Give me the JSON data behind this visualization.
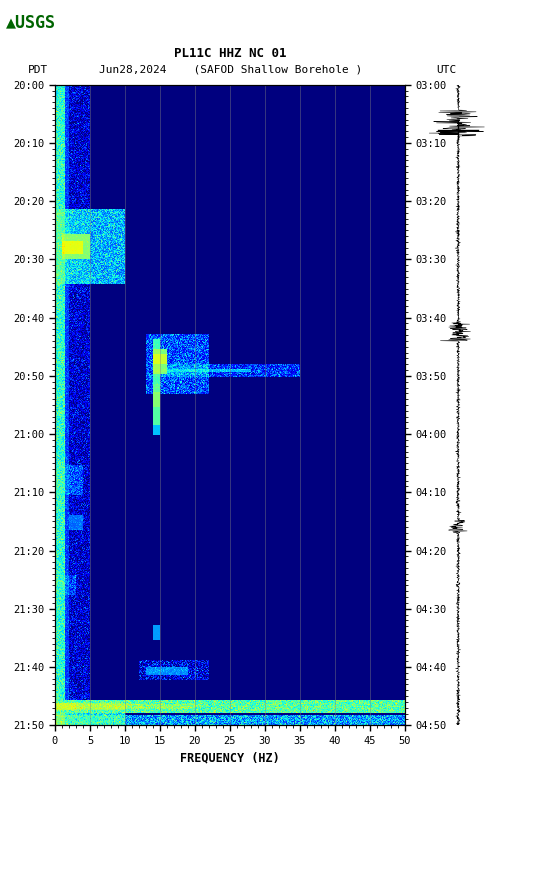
{
  "title_line1": "PL11C HHZ NC 01",
  "title_line2": "Jun28,2024    (SAFOD Shallow Borehole )",
  "left_label": "PDT",
  "right_label": "UTC",
  "freq_label": "FREQUENCY (HZ)",
  "freq_min": 0,
  "freq_max": 50,
  "freq_ticks": [
    0,
    5,
    10,
    15,
    20,
    25,
    30,
    35,
    40,
    45,
    50
  ],
  "time_left_labels": [
    "20:00",
    "20:10",
    "20:20",
    "20:30",
    "20:40",
    "20:50",
    "21:00",
    "21:10",
    "21:20",
    "21:30",
    "21:40",
    "21:50"
  ],
  "time_right_labels": [
    "03:00",
    "03:10",
    "03:20",
    "03:30",
    "03:40",
    "03:50",
    "04:00",
    "04:10",
    "04:20",
    "04:30",
    "04:40",
    "04:50"
  ],
  "time_rows": 12,
  "time_minutes_total": 110,
  "vertical_lines_freq": [
    5,
    10,
    15,
    20,
    25,
    30,
    35,
    40,
    45
  ],
  "bg_color": "#000080",
  "colormap": "jet",
  "figure_bg": "#ffffff",
  "usgs_color": "#006400",
  "vmin": -15,
  "vmax": 20
}
